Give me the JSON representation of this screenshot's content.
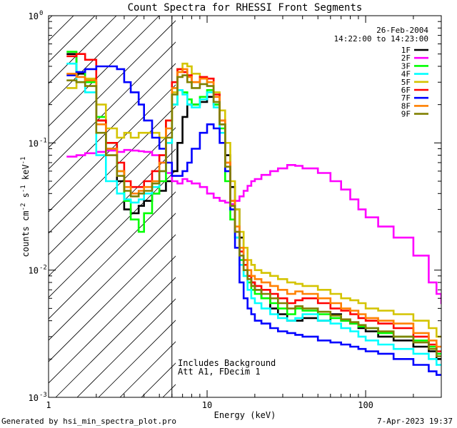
{
  "chart_data": {
    "type": "line",
    "title": "Count Spectra for RHESSI Front Segments",
    "xlabel": "Energy (keV)",
    "ylabel": "counts cm-2 s-1 keV-1",
    "xscale": "log",
    "yscale": "log",
    "xlim": [
      1.0,
      300.0
    ],
    "ylim": [
      0.001,
      1.0
    ],
    "x_ticks": [
      {
        "value": 1,
        "label": "1"
      },
      {
        "value": 10,
        "label": "10"
      },
      {
        "value": 100,
        "label": "100"
      }
    ],
    "y_ticks": [
      {
        "value": 1,
        "label": "10",
        "exp": "0"
      },
      {
        "value": 0.1,
        "label": "10",
        "exp": "-1"
      },
      {
        "value": 0.01,
        "label": "10",
        "exp": "-2"
      },
      {
        "value": 0.001,
        "label": "10",
        "exp": "-3"
      }
    ],
    "date": "26-Feb-2004",
    "time_range": "14:22:00 to 14:23:00",
    "hatch_limit_keV": 6.0,
    "annotations": [
      "Includes Background",
      "Att A1, FDecim 1"
    ],
    "series": [
      {
        "name": "1F",
        "color": "#000000",
        "x": [
          1.3,
          1.5,
          1.7,
          2.0,
          2.3,
          2.7,
          3.0,
          3.3,
          3.7,
          4.0,
          4.5,
          5.0,
          5.5,
          6.0,
          6.5,
          7.0,
          7.5,
          8.0,
          9.0,
          10.0,
          11.0,
          12.0,
          13.0,
          14.0,
          15.0,
          16.0,
          17.0,
          18.0,
          19.0,
          20.0,
          22.0,
          25.0,
          28.0,
          32.0,
          36.0,
          40.0,
          50.0,
          60.0,
          70.0,
          80.0,
          90.0,
          100.0,
          120.0,
          150.0,
          200.0,
          250.0,
          280.0
        ],
        "y": [
          0.5,
          0.35,
          0.3,
          0.15,
          0.09,
          0.05,
          0.03,
          0.028,
          0.032,
          0.035,
          0.04,
          0.042,
          0.05,
          0.06,
          0.1,
          0.16,
          0.2,
          0.2,
          0.21,
          0.23,
          0.2,
          0.14,
          0.08,
          0.045,
          0.03,
          0.018,
          0.012,
          0.009,
          0.008,
          0.007,
          0.006,
          0.005,
          0.0045,
          0.004,
          0.004,
          0.0042,
          0.004,
          0.0045,
          0.004,
          0.0038,
          0.0035,
          0.0033,
          0.003,
          0.0028,
          0.0025,
          0.0023,
          0.002
        ]
      },
      {
        "name": "2F",
        "color": "#ff00ff",
        "x": [
          1.3,
          1.5,
          1.7,
          2.0,
          2.3,
          2.7,
          3.0,
          3.3,
          3.7,
          4.0,
          4.5,
          5.0,
          5.5,
          6.0,
          6.5,
          7.0,
          7.5,
          8.0,
          9.0,
          10.0,
          11.0,
          12.0,
          13.0,
          14.0,
          15.0,
          16.0,
          17.0,
          18.0,
          19.0,
          20.0,
          22.0,
          25.0,
          28.0,
          32.0,
          36.0,
          40.0,
          50.0,
          60.0,
          70.0,
          80.0,
          90.0,
          100.0,
          120.0,
          150.0,
          200.0,
          250.0,
          280.0,
          300.0
        ],
        "y": [
          0.078,
          0.08,
          0.083,
          0.085,
          0.087,
          0.085,
          0.088,
          0.087,
          0.086,
          0.085,
          0.08,
          0.07,
          0.058,
          0.05,
          0.048,
          0.052,
          0.05,
          0.048,
          0.045,
          0.04,
          0.037,
          0.035,
          0.034,
          0.033,
          0.035,
          0.038,
          0.042,
          0.046,
          0.05,
          0.052,
          0.056,
          0.06,
          0.063,
          0.067,
          0.066,
          0.063,
          0.058,
          0.05,
          0.043,
          0.036,
          0.03,
          0.026,
          0.022,
          0.018,
          0.013,
          0.008,
          0.0065,
          0.0055
        ]
      },
      {
        "name": "3F",
        "color": "#00ff00",
        "x": [
          1.3,
          1.5,
          1.7,
          2.0,
          2.3,
          2.7,
          3.0,
          3.3,
          3.7,
          4.0,
          4.5,
          5.0,
          5.5,
          6.0,
          6.5,
          7.0,
          7.5,
          8.0,
          9.0,
          10.0,
          11.0,
          12.0,
          13.0,
          14.0,
          15.0,
          16.0,
          17.0,
          18.0,
          19.0,
          20.0,
          22.0,
          25.0,
          28.0,
          32.0,
          36.0,
          40.0,
          50.0,
          60.0,
          70.0,
          80.0,
          90.0,
          100.0,
          120.0,
          150.0,
          200.0,
          250.0,
          280.0
        ],
        "y": [
          0.52,
          0.36,
          0.3,
          0.16,
          0.1,
          0.06,
          0.035,
          0.025,
          0.02,
          0.028,
          0.04,
          0.05,
          0.1,
          0.2,
          0.26,
          0.25,
          0.22,
          0.2,
          0.23,
          0.26,
          0.2,
          0.13,
          0.05,
          0.025,
          0.018,
          0.012,
          0.009,
          0.008,
          0.007,
          0.0065,
          0.006,
          0.0055,
          0.005,
          0.0045,
          0.005,
          0.0048,
          0.0045,
          0.0042,
          0.004,
          0.0038,
          0.0036,
          0.0035,
          0.0032,
          0.003,
          0.0028,
          0.0025,
          0.0022
        ]
      },
      {
        "name": "4F",
        "color": "#00ffff",
        "x": [
          1.3,
          1.5,
          1.7,
          2.0,
          2.3,
          2.7,
          3.0,
          3.3,
          3.7,
          4.0,
          4.5,
          5.0,
          5.5,
          6.0,
          6.5,
          7.0,
          7.5,
          8.0,
          9.0,
          10.0,
          11.0,
          12.0,
          13.0,
          14.0,
          15.0,
          16.0,
          17.0,
          18.0,
          19.0,
          20.0,
          22.0,
          25.0,
          28.0,
          32.0,
          36.0,
          40.0,
          50.0,
          60.0,
          70.0,
          80.0,
          90.0,
          100.0,
          120.0,
          150.0,
          200.0,
          250.0,
          280.0
        ],
        "y": [
          0.42,
          0.3,
          0.25,
          0.08,
          0.05,
          0.04,
          0.036,
          0.034,
          0.036,
          0.04,
          0.045,
          0.06,
          0.1,
          0.2,
          0.26,
          0.24,
          0.2,
          0.19,
          0.22,
          0.25,
          0.19,
          0.12,
          0.06,
          0.03,
          0.018,
          0.011,
          0.009,
          0.007,
          0.006,
          0.0055,
          0.005,
          0.0045,
          0.0042,
          0.004,
          0.0042,
          0.0045,
          0.004,
          0.0038,
          0.0035,
          0.0033,
          0.003,
          0.0028,
          0.0026,
          0.0024,
          0.0022,
          0.002,
          0.0018
        ]
      },
      {
        "name": "5F",
        "color": "#d4c400",
        "x": [
          1.3,
          1.5,
          1.7,
          2.0,
          2.3,
          2.7,
          3.0,
          3.3,
          3.7,
          4.0,
          4.5,
          5.0,
          5.5,
          6.0,
          6.5,
          7.0,
          7.5,
          8.0,
          9.0,
          10.0,
          11.0,
          12.0,
          13.0,
          14.0,
          15.0,
          16.0,
          17.0,
          18.0,
          19.0,
          20.0,
          22.0,
          25.0,
          28.0,
          32.0,
          36.0,
          40.0,
          50.0,
          60.0,
          70.0,
          80.0,
          90.0,
          100.0,
          120.0,
          150.0,
          200.0,
          250.0,
          280.0
        ],
        "y": [
          0.27,
          0.3,
          0.32,
          0.2,
          0.13,
          0.11,
          0.12,
          0.11,
          0.12,
          0.12,
          0.12,
          0.11,
          0.15,
          0.25,
          0.38,
          0.42,
          0.4,
          0.35,
          0.32,
          0.3,
          0.25,
          0.18,
          0.1,
          0.05,
          0.03,
          0.02,
          0.015,
          0.012,
          0.011,
          0.01,
          0.0095,
          0.009,
          0.0085,
          0.008,
          0.0078,
          0.0075,
          0.007,
          0.0065,
          0.006,
          0.0058,
          0.0055,
          0.005,
          0.0048,
          0.0045,
          0.004,
          0.0035,
          0.003
        ]
      },
      {
        "name": "6F",
        "color": "#ff0000",
        "x": [
          1.3,
          1.5,
          1.7,
          2.0,
          2.3,
          2.7,
          3.0,
          3.3,
          3.7,
          4.0,
          4.5,
          5.0,
          5.5,
          6.0,
          6.5,
          7.0,
          7.5,
          8.0,
          9.0,
          10.0,
          11.0,
          12.0,
          13.0,
          14.0,
          15.0,
          16.0,
          17.0,
          18.0,
          19.0,
          20.0,
          22.0,
          25.0,
          28.0,
          32.0,
          36.0,
          40.0,
          50.0,
          60.0,
          70.0,
          80.0,
          90.0,
          100.0,
          120.0,
          150.0,
          200.0,
          250.0,
          280.0
        ],
        "y": [
          0.48,
          0.5,
          0.45,
          0.15,
          0.1,
          0.07,
          0.05,
          0.045,
          0.045,
          0.05,
          0.06,
          0.08,
          0.15,
          0.3,
          0.38,
          0.36,
          0.34,
          0.3,
          0.33,
          0.32,
          0.24,
          0.15,
          0.07,
          0.035,
          0.02,
          0.014,
          0.011,
          0.009,
          0.008,
          0.0075,
          0.007,
          0.0065,
          0.006,
          0.0055,
          0.0058,
          0.006,
          0.0055,
          0.005,
          0.0048,
          0.0045,
          0.0042,
          0.004,
          0.0038,
          0.0035,
          0.003,
          0.0026,
          0.0023
        ]
      },
      {
        "name": "7F",
        "color": "#0000ff",
        "x": [
          1.3,
          1.5,
          1.7,
          2.0,
          2.3,
          2.7,
          3.0,
          3.3,
          3.7,
          4.0,
          4.5,
          5.0,
          5.5,
          6.0,
          6.5,
          7.0,
          7.5,
          8.0,
          9.0,
          10.0,
          11.0,
          12.0,
          13.0,
          14.0,
          15.0,
          16.0,
          17.0,
          18.0,
          19.0,
          20.0,
          22.0,
          25.0,
          28.0,
          32.0,
          36.0,
          40.0,
          50.0,
          60.0,
          70.0,
          80.0,
          90.0,
          100.0,
          120.0,
          150.0,
          200.0,
          250.0,
          280.0
        ],
        "y": [
          0.34,
          0.36,
          0.38,
          0.4,
          0.4,
          0.38,
          0.3,
          0.25,
          0.2,
          0.15,
          0.11,
          0.09,
          0.07,
          0.055,
          0.055,
          0.06,
          0.07,
          0.09,
          0.12,
          0.14,
          0.13,
          0.1,
          0.06,
          0.03,
          0.015,
          0.008,
          0.006,
          0.005,
          0.0045,
          0.004,
          0.0038,
          0.0035,
          0.0033,
          0.0032,
          0.0031,
          0.003,
          0.0028,
          0.0027,
          0.0026,
          0.0025,
          0.0024,
          0.0023,
          0.0022,
          0.002,
          0.0018,
          0.0016,
          0.0015
        ]
      },
      {
        "name": "8F",
        "color": "#ff8000",
        "x": [
          1.3,
          1.5,
          1.7,
          2.0,
          2.3,
          2.7,
          3.0,
          3.3,
          3.7,
          4.0,
          4.5,
          5.0,
          5.5,
          6.0,
          6.5,
          7.0,
          7.5,
          8.0,
          9.0,
          10.0,
          11.0,
          12.0,
          13.0,
          14.0,
          15.0,
          16.0,
          17.0,
          18.0,
          19.0,
          20.0,
          22.0,
          25.0,
          28.0,
          32.0,
          36.0,
          40.0,
          50.0,
          60.0,
          70.0,
          80.0,
          90.0,
          100.0,
          120.0,
          150.0,
          200.0,
          250.0,
          280.0
        ],
        "y": [
          0.35,
          0.33,
          0.31,
          0.14,
          0.09,
          0.06,
          0.045,
          0.04,
          0.042,
          0.045,
          0.05,
          0.07,
          0.13,
          0.27,
          0.36,
          0.38,
          0.33,
          0.3,
          0.32,
          0.3,
          0.23,
          0.15,
          0.07,
          0.035,
          0.022,
          0.015,
          0.012,
          0.01,
          0.009,
          0.0085,
          0.008,
          0.0075,
          0.007,
          0.0065,
          0.0068,
          0.0065,
          0.006,
          0.0055,
          0.005,
          0.0048,
          0.0045,
          0.0042,
          0.004,
          0.0038,
          0.0032,
          0.0028,
          0.0025
        ]
      },
      {
        "name": "9F",
        "color": "#808000",
        "x": [
          1.3,
          1.5,
          1.7,
          2.0,
          2.3,
          2.7,
          3.0,
          3.3,
          3.7,
          4.0,
          4.5,
          5.0,
          5.5,
          6.0,
          6.5,
          7.0,
          7.5,
          8.0,
          9.0,
          10.0,
          11.0,
          12.0,
          13.0,
          14.0,
          15.0,
          16.0,
          17.0,
          18.0,
          19.0,
          20.0,
          22.0,
          25.0,
          28.0,
          32.0,
          36.0,
          40.0,
          50.0,
          60.0,
          70.0,
          80.0,
          90.0,
          100.0,
          120.0,
          150.0,
          200.0,
          250.0,
          280.0
        ],
        "y": [
          0.31,
          0.3,
          0.28,
          0.12,
          0.08,
          0.055,
          0.042,
          0.038,
          0.04,
          0.042,
          0.048,
          0.06,
          0.11,
          0.24,
          0.33,
          0.34,
          0.3,
          0.27,
          0.29,
          0.28,
          0.21,
          0.14,
          0.065,
          0.032,
          0.02,
          0.013,
          0.01,
          0.0085,
          0.0075,
          0.007,
          0.0065,
          0.006,
          0.0055,
          0.005,
          0.0052,
          0.005,
          0.0047,
          0.0044,
          0.0041,
          0.0039,
          0.0037,
          0.0035,
          0.0033,
          0.003,
          0.0027,
          0.0024,
          0.0021
        ]
      }
    ]
  },
  "footer": {
    "left": "Generated by hsi_min_spectra_plot.pro",
    "right": "7-Apr-2023 19:37"
  }
}
